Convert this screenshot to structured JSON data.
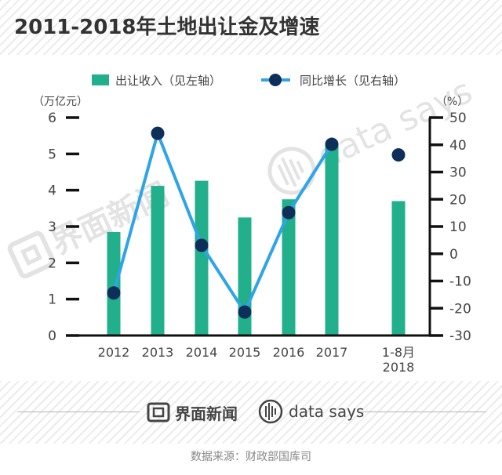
{
  "title": "2011-2018年土地出让金及增速",
  "brands": {
    "jiemian": "界面新闻",
    "datasays": "data says"
  },
  "source": "数据来源：财政部国库司",
  "colors": {
    "bar": "#21b08b",
    "line": "#2fa4e7",
    "marker": "#0d2f5a",
    "axis": "#111111",
    "text": "#444444"
  },
  "chart_data": {
    "type": "bar",
    "categories": [
      "2012",
      "2013",
      "2014",
      "2015",
      "2016",
      "2017",
      "1-8月\n2018"
    ],
    "series": [
      {
        "name": "出让收入（见左轴）",
        "type": "bar",
        "axis": "left",
        "values": [
          2.85,
          4.12,
          4.26,
          3.25,
          3.75,
          5.25,
          3.7
        ]
      },
      {
        "name": "同比增长（见右轴）",
        "type": "line",
        "axis": "right",
        "values": [
          -14.4,
          44.2,
          3.1,
          -21.4,
          15.1,
          40.2,
          36.3
        ],
        "connected_points": 6
      }
    ],
    "left_axis": {
      "unit": "（万亿元）",
      "min": 0,
      "max": 6,
      "ticks": [
        "0",
        "1",
        "2",
        "3",
        "4",
        "5",
        "6"
      ]
    },
    "right_axis": {
      "unit": "（%）",
      "min": -30,
      "max": 50,
      "ticks": [
        "-30",
        "-20",
        "-10",
        "0",
        "10",
        "20",
        "30",
        "40",
        "50"
      ]
    },
    "legend_position": "top",
    "grid": false
  }
}
